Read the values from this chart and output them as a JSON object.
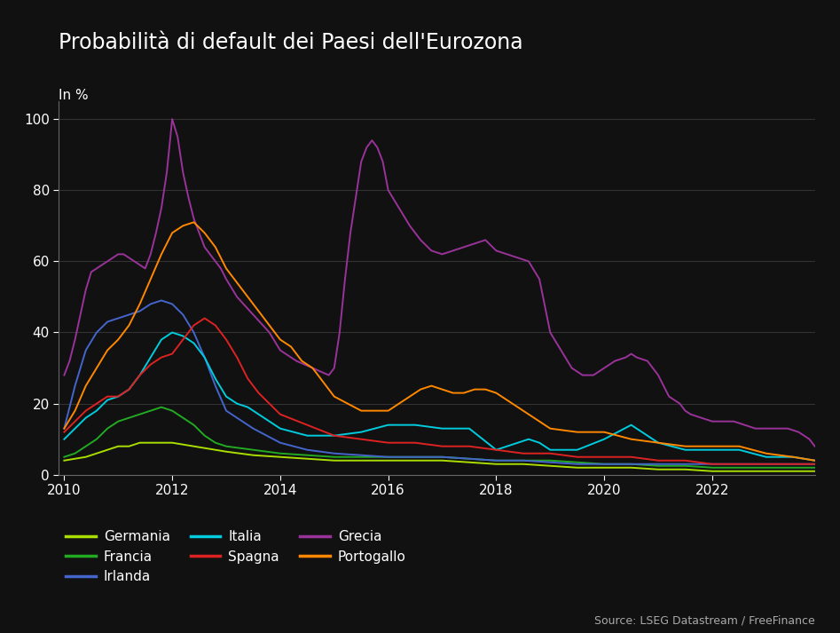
{
  "title": "Probabilità di default dei Paesi dell'Eurozona",
  "ylabel": "In %",
  "source": "Source: LSEG Datastream / FreeFinance",
  "background_color": "#111111",
  "text_color": "#ffffff",
  "grid_color": "#333333",
  "ylim": [
    0,
    105
  ],
  "yticks": [
    0,
    20,
    40,
    60,
    80,
    100
  ],
  "xticks": [
    2010,
    2012,
    2014,
    2016,
    2018,
    2020,
    2022
  ],
  "xlim": [
    2009.9,
    2023.9
  ],
  "series": {
    "Germania": {
      "color": "#aadd00",
      "data_x": [
        2010.0,
        2010.2,
        2010.4,
        2010.6,
        2010.8,
        2011.0,
        2011.2,
        2011.4,
        2011.6,
        2011.8,
        2012.0,
        2012.2,
        2012.4,
        2012.6,
        2012.8,
        2013.0,
        2013.5,
        2014.0,
        2014.5,
        2015.0,
        2015.5,
        2016.0,
        2016.5,
        2017.0,
        2017.5,
        2018.0,
        2018.5,
        2019.0,
        2019.5,
        2020.0,
        2020.5,
        2021.0,
        2021.5,
        2022.0,
        2022.5,
        2023.0,
        2023.5,
        2023.9
      ],
      "data_y": [
        4,
        4.5,
        5,
        6,
        7,
        8,
        8,
        9,
        9,
        9,
        9,
        8.5,
        8,
        7.5,
        7,
        6.5,
        5.5,
        5,
        4.5,
        4,
        4,
        4,
        4,
        4,
        3.5,
        3,
        3,
        2.5,
        2,
        2,
        2,
        1.5,
        1.5,
        1,
        1,
        1,
        1,
        1
      ]
    },
    "Francia": {
      "color": "#22aa22",
      "data_x": [
        2010.0,
        2010.2,
        2010.4,
        2010.6,
        2010.8,
        2011.0,
        2011.2,
        2011.4,
        2011.6,
        2011.8,
        2012.0,
        2012.2,
        2012.4,
        2012.6,
        2012.8,
        2013.0,
        2013.5,
        2014.0,
        2014.5,
        2015.0,
        2015.5,
        2016.0,
        2016.5,
        2017.0,
        2017.5,
        2018.0,
        2018.5,
        2019.0,
        2019.5,
        2020.0,
        2020.5,
        2021.0,
        2021.5,
        2022.0,
        2022.5,
        2023.0,
        2023.5,
        2023.9
      ],
      "data_y": [
        5,
        6,
        8,
        10,
        13,
        15,
        16,
        17,
        18,
        19,
        18,
        16,
        14,
        11,
        9,
        8,
        7,
        6,
        5.5,
        5,
        5,
        5,
        5,
        5,
        4.5,
        4,
        4,
        4,
        3.5,
        3,
        3,
        2.5,
        2.5,
        2,
        2,
        2,
        2,
        2
      ]
    },
    "Irlanda": {
      "color": "#4466cc",
      "data_x": [
        2010.0,
        2010.2,
        2010.4,
        2010.6,
        2010.8,
        2011.0,
        2011.2,
        2011.4,
        2011.6,
        2011.8,
        2012.0,
        2012.2,
        2012.4,
        2012.6,
        2012.8,
        2013.0,
        2013.5,
        2014.0,
        2014.5,
        2015.0,
        2015.5,
        2016.0,
        2016.5,
        2017.0,
        2017.5,
        2018.0,
        2018.5,
        2019.0,
        2019.5,
        2020.0,
        2020.5,
        2021.0,
        2021.5,
        2022.0,
        2022.5,
        2023.0,
        2023.5,
        2023.9
      ],
      "data_y": [
        13,
        25,
        35,
        40,
        43,
        44,
        45,
        46,
        48,
        49,
        48,
        45,
        40,
        33,
        25,
        18,
        13,
        9,
        7,
        6,
        5.5,
        5,
        5,
        5,
        4.5,
        4,
        4,
        3.5,
        3,
        3,
        3,
        3,
        3,
        3,
        3,
        3,
        3,
        3
      ]
    },
    "Italia": {
      "color": "#00ccdd",
      "data_x": [
        2010.0,
        2010.2,
        2010.4,
        2010.6,
        2010.8,
        2011.0,
        2011.2,
        2011.4,
        2011.6,
        2011.8,
        2012.0,
        2012.2,
        2012.4,
        2012.6,
        2012.8,
        2013.0,
        2013.2,
        2013.4,
        2013.6,
        2013.8,
        2014.0,
        2014.5,
        2015.0,
        2015.5,
        2016.0,
        2016.5,
        2017.0,
        2017.5,
        2018.0,
        2018.2,
        2018.4,
        2018.6,
        2018.8,
        2019.0,
        2019.5,
        2020.0,
        2020.5,
        2021.0,
        2021.5,
        2022.0,
        2022.5,
        2023.0,
        2023.5,
        2023.9
      ],
      "data_y": [
        10,
        13,
        16,
        18,
        21,
        22,
        24,
        28,
        33,
        38,
        40,
        39,
        37,
        33,
        27,
        22,
        20,
        19,
        17,
        15,
        13,
        11,
        11,
        12,
        14,
        14,
        13,
        13,
        7,
        8,
        9,
        10,
        9,
        7,
        7,
        10,
        14,
        9,
        7,
        7,
        7,
        5,
        5,
        4
      ]
    },
    "Spagna": {
      "color": "#dd2222",
      "data_x": [
        2010.0,
        2010.2,
        2010.4,
        2010.6,
        2010.8,
        2011.0,
        2011.2,
        2011.4,
        2011.6,
        2011.8,
        2012.0,
        2012.2,
        2012.4,
        2012.6,
        2012.8,
        2013.0,
        2013.2,
        2013.4,
        2013.6,
        2013.8,
        2014.0,
        2014.5,
        2015.0,
        2015.5,
        2016.0,
        2016.5,
        2017.0,
        2017.5,
        2018.0,
        2018.5,
        2019.0,
        2019.5,
        2020.0,
        2020.5,
        2021.0,
        2021.5,
        2022.0,
        2022.5,
        2023.0,
        2023.5,
        2023.9
      ],
      "data_y": [
        12,
        15,
        18,
        20,
        22,
        22,
        24,
        28,
        31,
        33,
        34,
        38,
        42,
        44,
        42,
        38,
        33,
        27,
        23,
        20,
        17,
        14,
        11,
        10,
        9,
        9,
        8,
        8,
        7,
        6,
        6,
        5,
        5,
        5,
        4,
        4,
        3,
        3,
        3,
        3,
        3
      ]
    },
    "Grecia": {
      "color": "#993399",
      "data_x": [
        2010.0,
        2010.1,
        2010.2,
        2010.3,
        2010.4,
        2010.5,
        2010.6,
        2010.7,
        2010.8,
        2010.9,
        2011.0,
        2011.1,
        2011.2,
        2011.3,
        2011.4,
        2011.5,
        2011.6,
        2011.7,
        2011.8,
        2011.9,
        2012.0,
        2012.1,
        2012.2,
        2012.3,
        2012.4,
        2012.5,
        2012.6,
        2012.7,
        2012.8,
        2012.9,
        2013.0,
        2013.2,
        2013.5,
        2013.8,
        2014.0,
        2014.3,
        2014.6,
        2014.9,
        2015.0,
        2015.1,
        2015.2,
        2015.3,
        2015.4,
        2015.5,
        2015.6,
        2015.7,
        2015.8,
        2015.9,
        2016.0,
        2016.2,
        2016.4,
        2016.6,
        2016.8,
        2017.0,
        2017.2,
        2017.4,
        2017.6,
        2017.8,
        2018.0,
        2018.2,
        2018.4,
        2018.6,
        2018.8,
        2019.0,
        2019.2,
        2019.4,
        2019.6,
        2019.8,
        2020.0,
        2020.2,
        2020.4,
        2020.5,
        2020.6,
        2020.8,
        2021.0,
        2021.2,
        2021.4,
        2021.5,
        2021.6,
        2021.8,
        2022.0,
        2022.2,
        2022.4,
        2022.6,
        2022.8,
        2023.0,
        2023.2,
        2023.4,
        2023.6,
        2023.8,
        2023.9
      ],
      "data_y": [
        28,
        32,
        38,
        45,
        52,
        57,
        58,
        59,
        60,
        61,
        62,
        62,
        61,
        60,
        59,
        58,
        62,
        68,
        75,
        85,
        100,
        95,
        85,
        78,
        72,
        68,
        64,
        62,
        60,
        58,
        55,
        50,
        45,
        40,
        35,
        32,
        30,
        28,
        30,
        40,
        55,
        68,
        78,
        88,
        92,
        94,
        92,
        88,
        80,
        75,
        70,
        66,
        63,
        62,
        63,
        64,
        65,
        66,
        63,
        62,
        61,
        60,
        55,
        40,
        35,
        30,
        28,
        28,
        30,
        32,
        33,
        34,
        33,
        32,
        28,
        22,
        20,
        18,
        17,
        16,
        15,
        15,
        15,
        14,
        13,
        13,
        13,
        13,
        12,
        10,
        8
      ]
    },
    "Portogallo": {
      "color": "#ff8800",
      "data_x": [
        2010.0,
        2010.2,
        2010.4,
        2010.6,
        2010.8,
        2011.0,
        2011.2,
        2011.4,
        2011.6,
        2011.8,
        2012.0,
        2012.2,
        2012.4,
        2012.6,
        2012.8,
        2013.0,
        2013.2,
        2013.4,
        2013.6,
        2013.8,
        2014.0,
        2014.2,
        2014.4,
        2014.6,
        2014.8,
        2015.0,
        2015.5,
        2016.0,
        2016.2,
        2016.4,
        2016.6,
        2016.8,
        2017.0,
        2017.2,
        2017.4,
        2017.6,
        2017.8,
        2018.0,
        2018.5,
        2019.0,
        2019.5,
        2020.0,
        2020.5,
        2021.0,
        2021.5,
        2022.0,
        2022.5,
        2023.0,
        2023.5,
        2023.9
      ],
      "data_y": [
        13,
        18,
        25,
        30,
        35,
        38,
        42,
        48,
        55,
        62,
        68,
        70,
        71,
        68,
        64,
        58,
        54,
        50,
        46,
        42,
        38,
        36,
        32,
        30,
        26,
        22,
        18,
        18,
        20,
        22,
        24,
        25,
        24,
        23,
        23,
        24,
        24,
        23,
        18,
        13,
        12,
        12,
        10,
        9,
        8,
        8,
        8,
        6,
        5,
        4
      ]
    }
  },
  "legend_rows": [
    [
      [
        "Germania",
        "#aadd00"
      ],
      [
        "Francia",
        "#22aa22"
      ],
      [
        "Irlanda",
        "#4466cc"
      ]
    ],
    [
      [
        "Italia",
        "#00ccdd"
      ],
      [
        "Spagna",
        "#dd2222"
      ],
      [
        "Grecia",
        "#993399"
      ]
    ],
    [
      [
        "Portogallo",
        "#ff8800"
      ]
    ]
  ]
}
